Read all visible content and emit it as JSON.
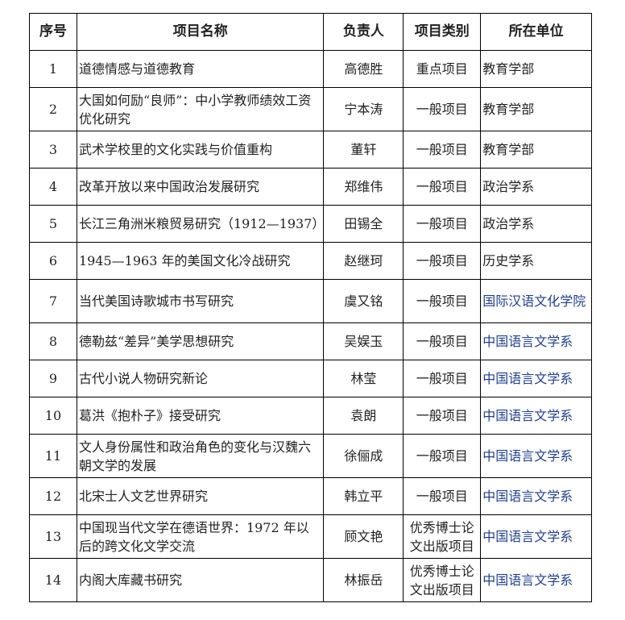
{
  "headers": [
    "序号",
    "项目名称",
    "负责人",
    "项目类别",
    "所在单位"
  ],
  "colors": {
    "accent_text": "#1f3f8f",
    "text": "#222222"
  },
  "rows": [
    {
      "no": "1",
      "name": "道德情感与道德教育",
      "lead": "高德胜",
      "type": "重点项目",
      "unit": "教育学部"
    },
    {
      "no": "2",
      "name": "大国如何励“良师”：中小学教师绩效工资优化研究",
      "lead": "宁本涛",
      "type": "一般项目",
      "unit": "教育学部"
    },
    {
      "no": "3",
      "name": "武术学校里的文化实践与价值重构",
      "lead": "董轩",
      "type": "一般项目",
      "unit": "教育学部"
    },
    {
      "no": "4",
      "name": "改革开放以来中国政治发展研究",
      "lead": "郑维伟",
      "type": "一般项目",
      "unit": "政治学系"
    },
    {
      "no": "5",
      "name": "长江三角洲米粮贸易研究（1912—1937）",
      "lead": "田锡全",
      "type": "一般项目",
      "unit": "政治学系"
    },
    {
      "no": "6",
      "name": "1945—1963 年的美国文化冷战研究",
      "lead": "赵继珂",
      "type": "一般项目",
      "unit": "历史学系"
    },
    {
      "no": "7",
      "name": "当代美国诗歌城市书写研究",
      "lead": "虞又铭",
      "type": "一般项目",
      "unit": "国际汉语文化学院"
    },
    {
      "no": "8",
      "name": "德勒兹“差异”美学思想研究",
      "lead": "吴娱玉",
      "type": "一般项目",
      "unit": "中国语言文学系"
    },
    {
      "no": "9",
      "name": "古代小说人物研究新论",
      "lead": "林莹",
      "type": "一般项目",
      "unit": "中国语言文学系"
    },
    {
      "no": "10",
      "name": "葛洪《抱朴子》接受研究",
      "lead": "袁朗",
      "type": "一般项目",
      "unit": "中国语言文学系"
    },
    {
      "no": "11",
      "name": "文人身份属性和政治角色的变化与汉魏六朝文学的发展",
      "lead": "徐俪成",
      "type": "一般项目",
      "unit": "中国语言文学系"
    },
    {
      "no": "12",
      "name": "北宋士人文艺世界研究",
      "lead": "韩立平",
      "type": "一般项目",
      "unit": "中国语言文学系"
    },
    {
      "no": "13",
      "name": "中国现当代文学在德语世界：1972 年以后的跨文化文学交流",
      "lead": "顾文艳",
      "type": "优秀博士论文出版项目",
      "unit": "中国语言文学系"
    },
    {
      "no": "14",
      "name": "内阁大库藏书研究",
      "lead": "林振岳",
      "type": "优秀博士论文出版项目",
      "unit": "中国语言文学系"
    }
  ]
}
